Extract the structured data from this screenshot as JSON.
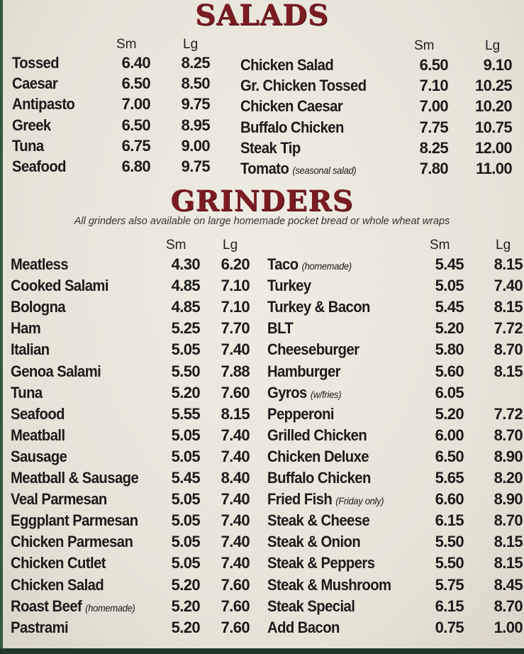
{
  "salads": {
    "title": "SALADS",
    "col_sm": "Sm",
    "col_lg": "Lg",
    "left": [
      {
        "name": "Tossed",
        "sm": "6.40",
        "lg": "8.25"
      },
      {
        "name": "Caesar",
        "sm": "6.50",
        "lg": "8.50"
      },
      {
        "name": "Antipasto",
        "sm": "7.00",
        "lg": "9.75"
      },
      {
        "name": "Greek",
        "sm": "6.50",
        "lg": "8.95"
      },
      {
        "name": "Tuna",
        "sm": "6.75",
        "lg": "9.00"
      },
      {
        "name": "Seafood",
        "sm": "6.80",
        "lg": "9.75"
      }
    ],
    "right": [
      {
        "name": "Chicken Salad",
        "sm": "6.50",
        "lg": "9.10"
      },
      {
        "name": "Gr. Chicken Tossed",
        "sm": "7.10",
        "lg": "10.25"
      },
      {
        "name": "Chicken Caesar",
        "sm": "7.00",
        "lg": "10.20"
      },
      {
        "name": "Buffalo Chicken",
        "sm": "7.75",
        "lg": "10.75"
      },
      {
        "name": "Steak Tip",
        "sm": "8.25",
        "lg": "12.00"
      },
      {
        "name": "Tomato",
        "note": "(seasonal salad)",
        "sm": "7.80",
        "lg": "11.00"
      }
    ]
  },
  "grinders": {
    "title": "GRINDERS",
    "subtitle": "All grinders also available on large homemade pocket bread or whole wheat wraps",
    "col_sm": "Sm",
    "col_lg": "Lg",
    "left": [
      {
        "name": "Meatless",
        "sm": "4.30",
        "lg": "6.20"
      },
      {
        "name": "Cooked Salami",
        "sm": "4.85",
        "lg": "7.10"
      },
      {
        "name": "Bologna",
        "sm": "4.85",
        "lg": "7.10"
      },
      {
        "name": "Ham",
        "sm": "5.25",
        "lg": "7.70"
      },
      {
        "name": "Italian",
        "sm": "5.05",
        "lg": "7.40"
      },
      {
        "name": "Genoa Salami",
        "sm": "5.50",
        "lg": "7.88"
      },
      {
        "name": "Tuna",
        "sm": "5.20",
        "lg": "7.60"
      },
      {
        "name": "Seafood",
        "sm": "5.55",
        "lg": "8.15"
      },
      {
        "name": "Meatball",
        "sm": "5.05",
        "lg": "7.40"
      },
      {
        "name": "Sausage",
        "sm": "5.05",
        "lg": "7.40"
      },
      {
        "name": "Meatball & Sausage",
        "sm": "5.45",
        "lg": "8.40"
      },
      {
        "name": "Veal Parmesan",
        "sm": "5.05",
        "lg": "7.40"
      },
      {
        "name": "Eggplant Parmesan",
        "sm": "5.05",
        "lg": "7.40"
      },
      {
        "name": "Chicken Parmesan",
        "sm": "5.05",
        "lg": "7.40"
      },
      {
        "name": "Chicken Cutlet",
        "sm": "5.05",
        "lg": "7.40"
      },
      {
        "name": "Chicken Salad",
        "sm": "5.20",
        "lg": "7.60"
      },
      {
        "name": "Roast Beef",
        "note": "(homemade)",
        "sm": "5.20",
        "lg": "7.60"
      },
      {
        "name": "Pastrami",
        "sm": "5.20",
        "lg": "7.60"
      }
    ],
    "right": [
      {
        "name": "Taco",
        "note": "(homemade)",
        "sm": "5.45",
        "lg": "8.15"
      },
      {
        "name": "Turkey",
        "sm": "5.05",
        "lg": "7.40"
      },
      {
        "name": "Turkey & Bacon",
        "sm": "5.45",
        "lg": "8.15"
      },
      {
        "name": "BLT",
        "sm": "5.20",
        "lg": "7.72"
      },
      {
        "name": "Cheeseburger",
        "sm": "5.80",
        "lg": "8.70"
      },
      {
        "name": "Hamburger",
        "sm": "5.60",
        "lg": "8.15"
      },
      {
        "name": "Gyros",
        "note": "(w/fries)",
        "sm": "6.05",
        "lg": ""
      },
      {
        "name": "Pepperoni",
        "sm": "5.20",
        "lg": "7.72"
      },
      {
        "name": "Grilled Chicken",
        "sm": "6.00",
        "lg": "8.70"
      },
      {
        "name": "Chicken Deluxe",
        "sm": "6.50",
        "lg": "8.90"
      },
      {
        "name": "Buffalo Chicken",
        "sm": "5.65",
        "lg": "8.20"
      },
      {
        "name": "Fried Fish",
        "note": "(Friday only)",
        "sm": "6.60",
        "lg": "8.90"
      },
      {
        "name": "Steak & Cheese",
        "sm": "6.15",
        "lg": "8.70"
      },
      {
        "name": "Steak & Onion",
        "sm": "5.50",
        "lg": "8.15"
      },
      {
        "name": "Steak & Peppers",
        "sm": "5.50",
        "lg": "8.15"
      },
      {
        "name": "Steak & Mushroom",
        "sm": "5.75",
        "lg": "8.45"
      },
      {
        "name": "Steak Special",
        "sm": "6.15",
        "lg": "8.70"
      },
      {
        "name": "Add Bacon",
        "sm": "0.75",
        "lg": "1.00"
      }
    ]
  },
  "colors": {
    "title": "#7b1c22",
    "text": "#1c1a1a",
    "background": "#ebe7dc",
    "edge": "#2f5b3a"
  }
}
